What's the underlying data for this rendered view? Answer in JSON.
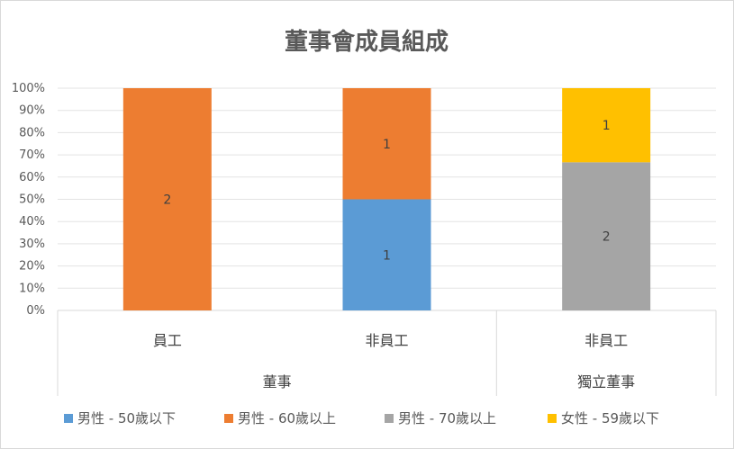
{
  "chart_data": {
    "type": "bar",
    "stacked": "percent",
    "title": "董事會成員組成",
    "xlabel": "",
    "ylabel": "",
    "ylim": [
      0,
      100
    ],
    "y_ticks": [
      "0%",
      "10%",
      "20%",
      "30%",
      "40%",
      "50%",
      "60%",
      "70%",
      "80%",
      "90%",
      "100%"
    ],
    "grid": true,
    "legend_position": "bottom",
    "categories": [
      "員工",
      "非員工",
      "非員工"
    ],
    "category_groups": [
      {
        "label": "董事",
        "span": [
          0,
          1
        ]
      },
      {
        "label": "獨立董事",
        "span": [
          2,
          2
        ]
      }
    ],
    "series": [
      {
        "name": "男性 - 50歲以下",
        "color": "#5b9bd5",
        "values": [
          0,
          1,
          0
        ]
      },
      {
        "name": "男性 - 60歲以上",
        "color": "#ed7d31",
        "values": [
          2,
          1,
          0
        ]
      },
      {
        "name": "男性 - 70歲以上",
        "color": "#a5a5a5",
        "values": [
          0,
          0,
          2
        ]
      },
      {
        "name": "女性 - 59歲以下",
        "color": "#ffc000",
        "values": [
          0,
          0,
          1
        ]
      }
    ]
  }
}
